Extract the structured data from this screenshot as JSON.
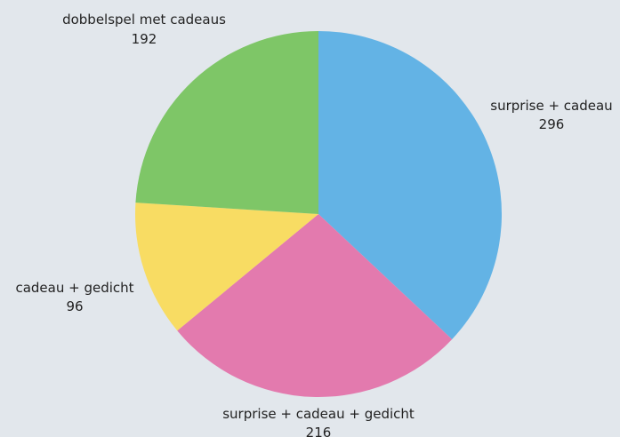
{
  "chart_data": {
    "type": "pie",
    "title": "",
    "slices": [
      {
        "label": "surprise + cadeau",
        "value": 296,
        "color": "#63b3e5"
      },
      {
        "label": "surprise + cadeau + gedicht",
        "value": 216,
        "color": "#e37aae"
      },
      {
        "label": "cadeau + gedicht",
        "value": 96,
        "color": "#f8dc63"
      },
      {
        "label": "dobbelspel met cadeaus",
        "value": 192,
        "color": "#7ec667"
      }
    ]
  }
}
